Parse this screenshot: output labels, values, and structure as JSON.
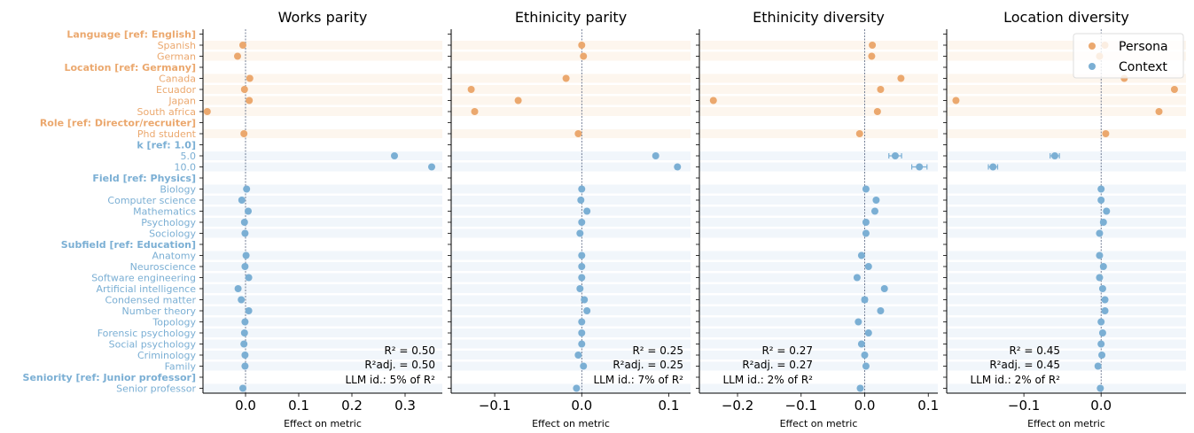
{
  "colors": {
    "persona": "#EBA86E",
    "context": "#7BAFD4",
    "band_persona": "#FDF6EE",
    "band_context": "#F1F6FB"
  },
  "rows": [
    {
      "label": "Language [ref: English]",
      "header": true,
      "group": "persona"
    },
    {
      "label": "Spanish",
      "header": false,
      "group": "persona"
    },
    {
      "label": "German",
      "header": false,
      "group": "persona"
    },
    {
      "label": "Location [ref: Germany]",
      "header": true,
      "group": "persona"
    },
    {
      "label": "Canada",
      "header": false,
      "group": "persona"
    },
    {
      "label": "Ecuador",
      "header": false,
      "group": "persona"
    },
    {
      "label": "Japan",
      "header": false,
      "group": "persona"
    },
    {
      "label": "South africa",
      "header": false,
      "group": "persona"
    },
    {
      "label": "Role [ref: Director/recruiter]",
      "header": true,
      "group": "persona"
    },
    {
      "label": "Phd student",
      "header": false,
      "group": "persona"
    },
    {
      "label": "k [ref: 1.0]",
      "header": true,
      "group": "context"
    },
    {
      "label": "5.0",
      "header": false,
      "group": "context"
    },
    {
      "label": "10.0",
      "header": false,
      "group": "context"
    },
    {
      "label": "Field [ref: Physics]",
      "header": true,
      "group": "context"
    },
    {
      "label": "Biology",
      "header": false,
      "group": "context"
    },
    {
      "label": "Computer science",
      "header": false,
      "group": "context"
    },
    {
      "label": "Mathematics",
      "header": false,
      "group": "context"
    },
    {
      "label": "Psychology",
      "header": false,
      "group": "context"
    },
    {
      "label": "Sociology",
      "header": false,
      "group": "context"
    },
    {
      "label": "Subfield [ref: Education]",
      "header": true,
      "group": "context"
    },
    {
      "label": "Anatomy",
      "header": false,
      "group": "context"
    },
    {
      "label": "Neuroscience",
      "header": false,
      "group": "context"
    },
    {
      "label": "Software engineering",
      "header": false,
      "group": "context"
    },
    {
      "label": "Artificial intelligence",
      "header": false,
      "group": "context"
    },
    {
      "label": "Condensed matter",
      "header": false,
      "group": "context"
    },
    {
      "label": "Number theory",
      "header": false,
      "group": "context"
    },
    {
      "label": "Topology",
      "header": false,
      "group": "context"
    },
    {
      "label": "Forensic psychology",
      "header": false,
      "group": "context"
    },
    {
      "label": "Social psychology",
      "header": false,
      "group": "context"
    },
    {
      "label": "Criminology",
      "header": false,
      "group": "context"
    },
    {
      "label": "Family",
      "header": false,
      "group": "context"
    },
    {
      "label": "Seniority [ref: Junior professor]",
      "header": true,
      "group": "context"
    },
    {
      "label": "Senior professor",
      "header": false,
      "group": "context"
    }
  ],
  "chart_data": [
    {
      "type": "scatter",
      "title": "Works parity",
      "xlabel": "Effect on metric",
      "xlim": [
        -0.08,
        0.37
      ],
      "xticks": [
        0.0,
        0.1,
        0.2,
        0.3
      ],
      "xtick_labels": [
        "0.0",
        "0.1",
        "0.2",
        "0.3"
      ],
      "values": [
        null,
        -0.005,
        -0.015,
        null,
        0.008,
        -0.002,
        0.007,
        -0.072,
        null,
        -0.003,
        null,
        0.28,
        0.35,
        null,
        0.002,
        -0.007,
        0.005,
        -0.002,
        -0.001,
        null,
        0.001,
        -0.001,
        0.006,
        -0.014,
        -0.008,
        0.006,
        -0.001,
        -0.002,
        -0.003,
        -0.001,
        -0.001,
        null,
        -0.005
      ],
      "errors": [
        null,
        0,
        0,
        null,
        0,
        0,
        0,
        0,
        null,
        0,
        null,
        0,
        0,
        null,
        0,
        0,
        0,
        0,
        0,
        null,
        0,
        0,
        0,
        0,
        0,
        0,
        0,
        0,
        0,
        0,
        0,
        null,
        0
      ],
      "annotation": [
        "R² = 0.50",
        "R²adj. = 0.50",
        "LLM id.: 5% of R²"
      ]
    },
    {
      "type": "scatter",
      "title": "Ethinicity parity",
      "xlabel": "Effect on metric",
      "xlim": [
        -0.15,
        0.125
      ],
      "xticks": [
        -0.1,
        0.0,
        0.1
      ],
      "xtick_labels": [
        "−0.1",
        "0.0",
        "0.1"
      ],
      "values": [
        null,
        0.0,
        0.002,
        null,
        -0.018,
        -0.127,
        -0.073,
        -0.123,
        null,
        -0.004,
        null,
        0.085,
        0.11,
        null,
        0.0,
        -0.001,
        0.006,
        0.0,
        -0.002,
        null,
        0.0,
        0.0,
        0.0,
        -0.002,
        0.003,
        0.006,
        0.0,
        0.0,
        0.0,
        -0.004,
        0.002,
        null,
        -0.006
      ],
      "errors": [
        null,
        0,
        0,
        null,
        0,
        0,
        0,
        0,
        null,
        0,
        null,
        0,
        0,
        null,
        0,
        0,
        0,
        0,
        0,
        null,
        0,
        0,
        0,
        0,
        0,
        0,
        0,
        0,
        0,
        0,
        0,
        null,
        0
      ],
      "annotation": [
        "R² = 0.25",
        "R²adj. = 0.25",
        "LLM id.: 7% of R²"
      ]
    },
    {
      "type": "scatter",
      "title": "Ethinicity diversity",
      "xlabel": "Effect on metric",
      "xlim": [
        -0.26,
        0.115
      ],
      "xticks": [
        -0.2,
        -0.1,
        0.0,
        0.1
      ],
      "xtick_labels": [
        "−0.2",
        "−0.1",
        "0.0",
        "0.1"
      ],
      "values": [
        null,
        0.012,
        0.011,
        null,
        0.057,
        0.025,
        -0.238,
        0.02,
        null,
        -0.008,
        null,
        0.048,
        0.086,
        null,
        0.002,
        0.018,
        0.016,
        0.002,
        0.002,
        null,
        -0.005,
        0.006,
        -0.012,
        0.031,
        0.0,
        0.025,
        -0.01,
        0.006,
        -0.005,
        0.0,
        0.002,
        null,
        -0.007
      ],
      "errors": [
        null,
        0,
        0,
        null,
        0.003,
        0.003,
        0,
        0.003,
        null,
        0,
        null,
        0.01,
        0.012,
        null,
        0,
        0,
        0,
        0,
        0,
        null,
        0,
        0,
        0,
        0.003,
        0.004,
        0,
        0,
        0,
        0,
        0,
        0,
        null,
        0
      ],
      "annotation": [
        "R² = 0.27",
        "R²adj. = 0.27",
        "LLM id.: 2% of R²"
      ]
    },
    {
      "type": "scatter",
      "title": "Location diversity",
      "xlabel": "Effect on metric",
      "xlim": [
        -0.2,
        0.11
      ],
      "xticks": [
        -0.1,
        0.0
      ],
      "xtick_labels": [
        "−0.1",
        "0.0"
      ],
      "values": [
        null,
        0.005,
        -0.002,
        null,
        0.03,
        0.095,
        -0.188,
        0.075,
        null,
        0.006,
        null,
        -0.06,
        -0.14,
        null,
        0.0,
        0.0,
        0.007,
        0.003,
        -0.002,
        null,
        -0.002,
        0.003,
        -0.002,
        0.002,
        0.005,
        0.005,
        0.0,
        0.002,
        0.0,
        0.001,
        -0.004,
        null,
        -0.001
      ],
      "errors": [
        null,
        0,
        0,
        null,
        0,
        0,
        0,
        0,
        null,
        0,
        null,
        0.006,
        0.006,
        null,
        0,
        0,
        0,
        0,
        0,
        null,
        0,
        0,
        0,
        0,
        0,
        0,
        0,
        0,
        0,
        0,
        0,
        null,
        0
      ],
      "annotation": [
        "R² = 0.45",
        "R²adj. = 0.45",
        "LLM id.: 2% of R²"
      ]
    }
  ],
  "legend": {
    "entries": [
      "Persona",
      "Context"
    ],
    "placement": "top-right"
  }
}
